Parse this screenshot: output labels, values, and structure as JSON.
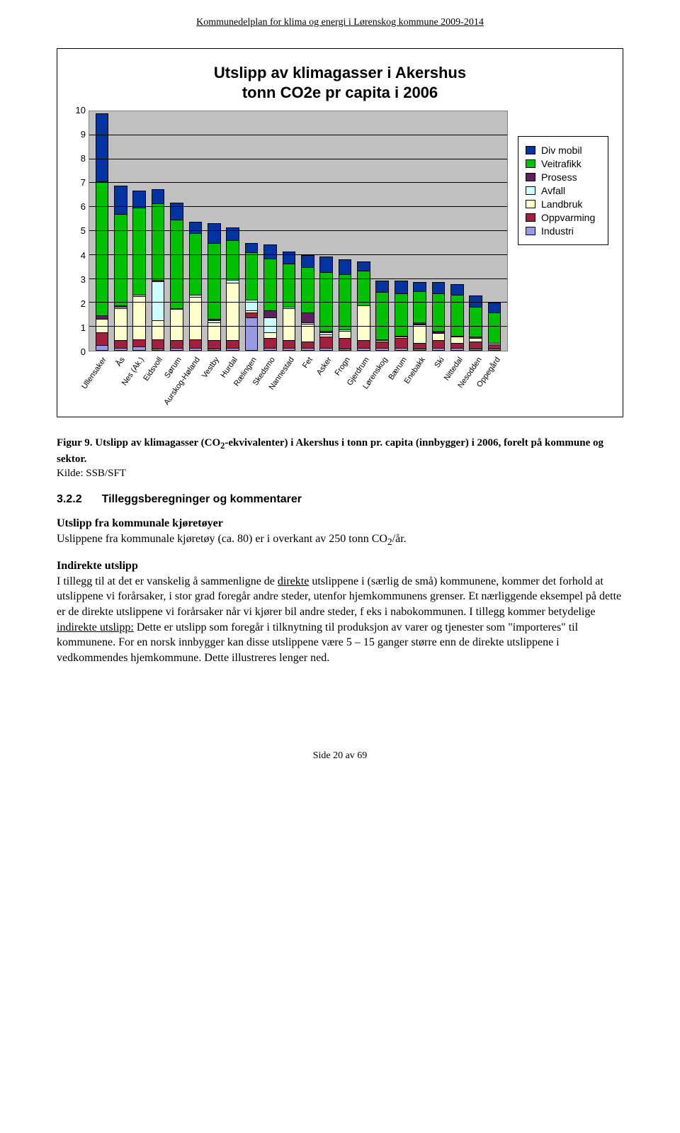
{
  "running_header": "Kommunedelplan for klima og energi i Lørenskog kommune 2009-2014",
  "chart": {
    "type": "bar-stacked",
    "title_line1": "Utslipp av klimagasser i Akershus",
    "title_line2": "tonn CO2e pr capita i 2006",
    "ylim": [
      0,
      10
    ],
    "ytick_step": 1,
    "yticks": [
      0,
      1,
      2,
      3,
      4,
      5,
      6,
      7,
      8,
      9,
      10
    ],
    "background_color": "#c0c0c0",
    "grid_color": "#000000",
    "series": [
      {
        "key": "industri",
        "label": "Industri",
        "color": "#9999e5"
      },
      {
        "key": "oppvarming",
        "label": "Oppvarming",
        "color": "#a02040"
      },
      {
        "key": "landbruk",
        "label": "Landbruk",
        "color": "#ffffcc"
      },
      {
        "key": "avfall",
        "label": "Avfall",
        "color": "#ccffff"
      },
      {
        "key": "prosess",
        "label": "Prosess",
        "color": "#602060"
      },
      {
        "key": "veitrafikk",
        "label": "Veitrafikk",
        "color": "#00c000"
      },
      {
        "key": "divmobil",
        "label": "Div mobil",
        "color": "#0033a0"
      }
    ],
    "legend_order": [
      "divmobil",
      "veitrafikk",
      "prosess",
      "avfall",
      "landbruk",
      "oppvarming",
      "industri"
    ],
    "categories": [
      "Ullensaker",
      "Ås",
      "Nes (Ak.)",
      "Eidsvoll",
      "Sørum",
      "Aurskog-Høland",
      "Vestby",
      "Hurdal",
      "Rælingen",
      "Skedsmo",
      "Nannestad",
      "Fet",
      "Asker",
      "Frogn",
      "Gjerdrum",
      "Lørenskog",
      "Bærum",
      "Enebakk",
      "Ski",
      "Nittedal",
      "Nesodden",
      "Oppegård"
    ],
    "values": [
      {
        "industri": 0.2,
        "oppvarming": 0.55,
        "landbruk": 0.55,
        "avfall": 0.0,
        "prosess": 0.15,
        "veitrafikk": 5.55,
        "divmobil": 2.8
      },
      {
        "industri": 0.1,
        "oppvarming": 0.3,
        "landbruk": 1.35,
        "avfall": 0.05,
        "prosess": 0.05,
        "veitrafikk": 3.8,
        "divmobil": 1.15
      },
      {
        "industri": 0.15,
        "oppvarming": 0.3,
        "landbruk": 1.8,
        "avfall": 0.05,
        "prosess": 0.0,
        "veitrafikk": 3.6,
        "divmobil": 0.7
      },
      {
        "industri": 0.05,
        "oppvarming": 0.4,
        "landbruk": 0.8,
        "avfall": 1.6,
        "prosess": 0.05,
        "veitrafikk": 3.2,
        "divmobil": 0.55
      },
      {
        "industri": 0.1,
        "oppvarming": 0.3,
        "landbruk": 1.3,
        "avfall": 0.05,
        "prosess": 0.0,
        "veitrafikk": 3.65,
        "divmobil": 0.7
      },
      {
        "industri": 0.1,
        "oppvarming": 0.35,
        "landbruk": 1.75,
        "avfall": 0.1,
        "prosess": 0.0,
        "veitrafikk": 2.55,
        "divmobil": 0.45
      },
      {
        "industri": 0.05,
        "oppvarming": 0.35,
        "landbruk": 0.75,
        "avfall": 0.1,
        "prosess": 0.05,
        "veitrafikk": 3.15,
        "divmobil": 0.8
      },
      {
        "industri": 0.1,
        "oppvarming": 0.3,
        "landbruk": 2.4,
        "avfall": 0.1,
        "prosess": 0.0,
        "veitrafikk": 1.65,
        "divmobil": 0.5
      },
      {
        "industri": 1.35,
        "oppvarming": 0.2,
        "landbruk": 0.1,
        "avfall": 0.45,
        "prosess": 0.0,
        "veitrafikk": 1.95,
        "divmobil": 0.35
      },
      {
        "industri": 0.1,
        "oppvarming": 0.4,
        "landbruk": 0.25,
        "avfall": 0.6,
        "prosess": 0.3,
        "veitrafikk": 2.15,
        "divmobil": 0.55
      },
      {
        "industri": 0.1,
        "oppvarming": 0.3,
        "landbruk": 1.35,
        "avfall": 0.05,
        "prosess": 0.0,
        "veitrafikk": 1.8,
        "divmobil": 0.45
      },
      {
        "industri": 0.1,
        "oppvarming": 0.25,
        "landbruk": 0.75,
        "avfall": 0.05,
        "prosess": 0.4,
        "veitrafikk": 1.9,
        "divmobil": 0.45
      },
      {
        "industri": 0.1,
        "oppvarming": 0.45,
        "landbruk": 0.1,
        "avfall": 0.1,
        "prosess": 0.05,
        "veitrafikk": 2.45,
        "divmobil": 0.6
      },
      {
        "industri": 0.05,
        "oppvarming": 0.45,
        "landbruk": 0.3,
        "avfall": 0.05,
        "prosess": 0.0,
        "veitrafikk": 2.3,
        "divmobil": 0.6
      },
      {
        "industri": 0.1,
        "oppvarming": 0.3,
        "landbruk": 1.45,
        "avfall": 0.0,
        "prosess": 0.0,
        "veitrafikk": 1.45,
        "divmobil": 0.35
      },
      {
        "industri": 0.1,
        "oppvarming": 0.25,
        "landbruk": 0.05,
        "avfall": 0.0,
        "prosess": 0.05,
        "veitrafikk": 1.95,
        "divmobil": 0.45
      },
      {
        "industri": 0.1,
        "oppvarming": 0.4,
        "landbruk": 0.05,
        "avfall": 0.0,
        "prosess": 0.05,
        "veitrafikk": 1.75,
        "divmobil": 0.5
      },
      {
        "industri": 0.05,
        "oppvarming": 0.25,
        "landbruk": 0.75,
        "avfall": 0.05,
        "prosess": 0.05,
        "veitrafikk": 1.3,
        "divmobil": 0.35
      },
      {
        "industri": 0.1,
        "oppvarming": 0.3,
        "landbruk": 0.3,
        "avfall": 0.05,
        "prosess": 0.05,
        "veitrafikk": 1.55,
        "divmobil": 0.45
      },
      {
        "industri": 0.1,
        "oppvarming": 0.2,
        "landbruk": 0.25,
        "avfall": 0.05,
        "prosess": 0.0,
        "veitrafikk": 1.7,
        "divmobil": 0.4
      },
      {
        "industri": 0.05,
        "oppvarming": 0.3,
        "landbruk": 0.15,
        "avfall": 0.0,
        "prosess": 0.05,
        "veitrafikk": 1.25,
        "divmobil": 0.45
      },
      {
        "industri": 0.05,
        "oppvarming": 0.2,
        "landbruk": 0.05,
        "avfall": 0.0,
        "prosess": 0.0,
        "veitrafikk": 1.25,
        "divmobil": 0.4
      }
    ]
  },
  "caption_label": "Figur 9. Utslipp av klimagasser (CO",
  "caption_sub1": "2",
  "caption_cont": "-ekvivalenter) i Akershus i tonn pr. capita (innbygger) i 2006, forelt på kommune og sektor.",
  "caption_source": "Kilde:  SSB/SFT",
  "section_num": "3.2.2",
  "section_title": "Tilleggsberegninger og kommentarer",
  "para1_title": "Utslipp fra kommunale kjøretøyer",
  "para1_a": "Uslippene fra kommunale kjøretøy (ca. 80) er i overkant av 250 tonn CO",
  "para1_sub": "2",
  "para1_b": "/år.",
  "para2_title": "Indirekte utslipp",
  "para2_a": "I tillegg til at det er vanskelig å sammenligne de ",
  "para2_u1": "direkte",
  "para2_b": " utslippene i (særlig de små) kommunene, kommer det forhold at utslippene vi forårsaker, i stor grad foregår andre steder, utenfor hjemkommunens grenser. Et nærliggende eksempel på dette er de direkte utslippene vi forårsaker når vi kjører bil andre steder, f eks i nabokommunen. I tillegg kommer betydelige ",
  "para2_u2": "indirekte utslipp:",
  "para2_c": " Dette er utslipp som foregår i tilknytning til produksjon av varer og tjenester som \"importeres\" til kommunene. For en norsk innbygger kan disse utslippene være 5 – 15 ganger større enn de direkte utslippene i vedkommendes hjemkommune. Dette illustreres lenger ned.",
  "footer": "Side 20 av 69"
}
